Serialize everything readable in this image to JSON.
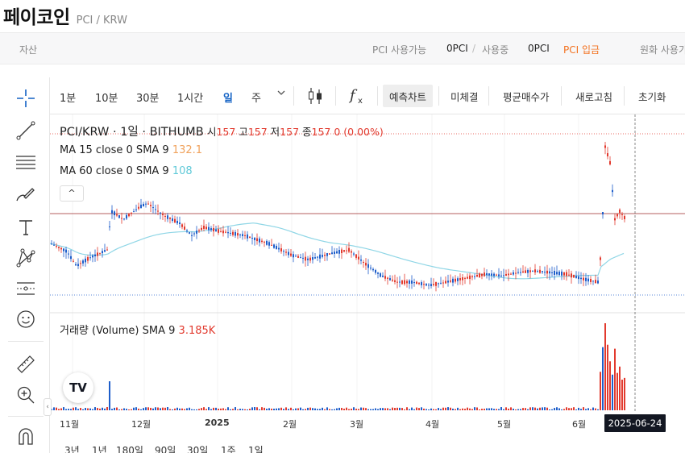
{
  "header": {
    "coin_name": "페이코인",
    "pair": "PCI / KRW"
  },
  "asset_bar": {
    "label": "자산",
    "available_label": "PCI 사용가능",
    "available_value": "0PCI",
    "in_use_label": "사용중",
    "in_use_value": "0PCI",
    "deposit_label": "PCI 입금",
    "krw_label": "원화 사용가"
  },
  "toolbar": {
    "intervals": [
      "1분",
      "10분",
      "30분",
      "1시간",
      "일",
      "주"
    ],
    "active_interval": "일",
    "dropdown_icon": "chevron-down-icon",
    "candle_icon": "candlestick-icon",
    "indicator_icon": "fx-icon",
    "buttons": [
      "예측차트",
      "미체결",
      "평균매수가",
      "새로고침",
      "초기화"
    ]
  },
  "legend": {
    "symbol": "PCI/KRW · 1일 · BITHUMB",
    "open_label": "시",
    "open": "157",
    "high_label": "고",
    "high": "157",
    "low_label": "저",
    "low": "157",
    "close_label": "종",
    "close": "157",
    "change": "0 (0.00%)",
    "ma15_label": "MA 15 close 0 SMA 9",
    "ma15_value": "132.1",
    "ma60_label": "MA 60 close 0 SMA 9",
    "ma60_value": "108",
    "collapse": "^",
    "volume_label": "거래량 (Volume) SMA 9",
    "volume_value": "3.185K"
  },
  "x_axis": {
    "labels": [
      "11월",
      "12월",
      "2025",
      "2월",
      "3월",
      "4월",
      "5월",
      "6월"
    ],
    "crosshair_date": "2025-06-24"
  },
  "range_buttons": [
    "3년",
    "1년",
    "180일",
    "90일",
    "30일",
    "1주",
    "1일"
  ],
  "left_tools": [
    "crosshair-icon",
    "trendline-icon",
    "fib-lines-icon",
    "brush-icon",
    "text-icon",
    "pattern-icon",
    "forecast-icon",
    "emoji-icon",
    "ruler-icon",
    "zoom-icon",
    "magnet-icon"
  ],
  "logo_text": "TV",
  "colors": {
    "up": "#e23a2e",
    "down": "#1e5eca",
    "ma15": "#f0a25c",
    "ma60": "#8fd6e6",
    "accent": "#1261c4",
    "deposit": "#f37321"
  }
}
